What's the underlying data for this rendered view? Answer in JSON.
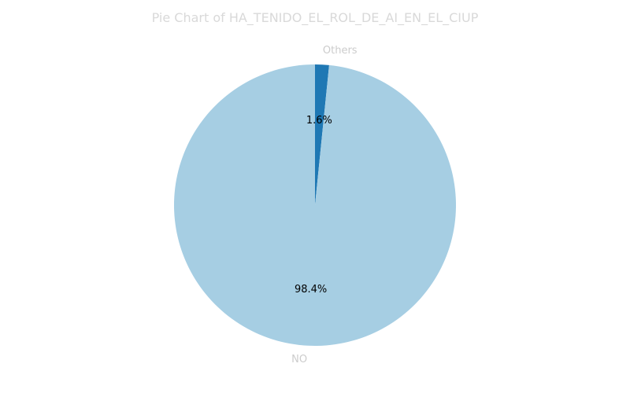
{
  "chart_data": {
    "type": "pie",
    "title": "Pie Chart of HA_TENIDO_EL_ROL_DE_AI_EN_EL_CIUP",
    "slices": [
      {
        "label": "Others",
        "value": 1.6,
        "pct_label": "1.6%",
        "color": "#1f78b4"
      },
      {
        "label": "NO",
        "value": 98.4,
        "pct_label": "98.4%",
        "color": "#a6cee3"
      }
    ],
    "start": "top",
    "direction": "clockwise",
    "legend": "none"
  }
}
